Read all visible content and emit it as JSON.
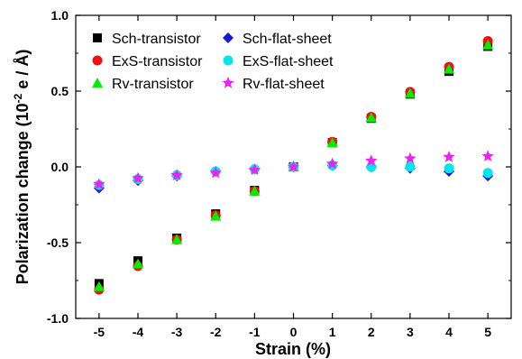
{
  "chart_data": {
    "type": "scatter",
    "xlabel": "Strain (%)",
    "ylabel_main": "Polarization change (10",
    "ylabel_sup": "-2",
    "ylabel_end": " e / Å)",
    "xlim": [
      -5.6,
      5.6
    ],
    "ylim": [
      -1.0,
      1.0
    ],
    "xticks": [
      -5,
      -4,
      -3,
      -2,
      -1,
      0,
      1,
      2,
      3,
      4,
      5
    ],
    "yticks": [
      1.0,
      0.5,
      0.0,
      -0.5,
      -1.0
    ],
    "ytick_labels": [
      "1.0",
      "0.5",
      "0.0",
      "-0.5",
      "-1.0"
    ],
    "legend_placement": "top-left",
    "x": [
      -5,
      -4,
      -3,
      -2,
      -1,
      0,
      1,
      2,
      3,
      4,
      5
    ],
    "series": [
      {
        "name": "Sch-transistor",
        "marker": "square",
        "color": "#000000",
        "values": [
          -0.77,
          -0.62,
          -0.47,
          -0.31,
          -0.155,
          0.0,
          0.16,
          0.32,
          0.48,
          0.63,
          0.795
        ]
      },
      {
        "name": "ExS-transistor",
        "marker": "circle",
        "color": "#ee1111",
        "values": [
          -0.81,
          -0.655,
          -0.48,
          -0.32,
          -0.16,
          0.0,
          0.165,
          0.33,
          0.495,
          0.66,
          0.83
        ]
      },
      {
        "name": "Rv-transistor",
        "marker": "triangle",
        "color": "#00ee00",
        "values": [
          -0.79,
          -0.64,
          -0.48,
          -0.325,
          -0.16,
          0.0,
          0.16,
          0.325,
          0.485,
          0.645,
          0.805
        ]
      },
      {
        "name": "Sch-flat-sheet",
        "marker": "diamond",
        "color": "#1818cc",
        "values": [
          -0.14,
          -0.09,
          -0.06,
          -0.03,
          -0.015,
          0.0,
          0.01,
          0.0,
          -0.01,
          -0.03,
          -0.06
        ]
      },
      {
        "name": "ExS-flat-sheet",
        "marker": "circle",
        "color": "#00e5ee",
        "values": [
          -0.12,
          -0.08,
          -0.055,
          -0.03,
          -0.015,
          0.0,
          0.01,
          0.0,
          0.0,
          -0.01,
          -0.04
        ]
      },
      {
        "name": "Rv-flat-sheet",
        "marker": "star",
        "color": "#ee22ee",
        "values": [
          -0.115,
          -0.075,
          -0.055,
          -0.04,
          -0.02,
          0.0,
          0.02,
          0.04,
          0.055,
          0.065,
          0.07
        ]
      }
    ]
  }
}
